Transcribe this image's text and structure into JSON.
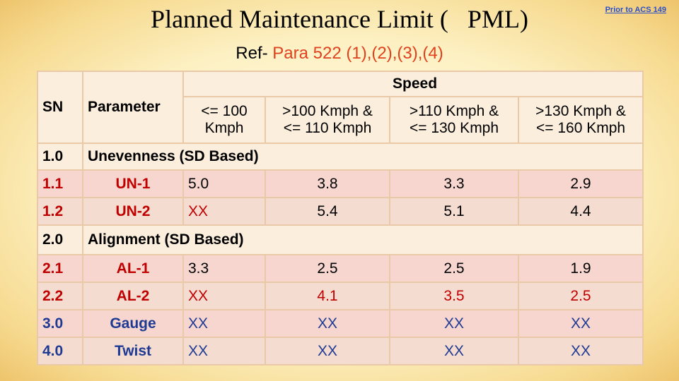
{
  "header": {
    "title_part1": "Planned Maintenance Limit (",
    "title_part2": "PML)",
    "corner_link": "Prior to ACS 149",
    "ref_prefix": "Ref-",
    "ref_value": "Para 522 (1),(2),(3),(4)"
  },
  "table": {
    "col_sn": "SN",
    "col_parameter": "Parameter",
    "col_speed": "Speed",
    "speed_ranges": [
      {
        "line1": "<= 100",
        "line2": "Kmph"
      },
      {
        "line1": ">100 Kmph &",
        "line2": "<= 110 Kmph"
      },
      {
        "line1": ">110 Kmph &",
        "line2": "<= 130 Kmph"
      },
      {
        "line1": ">130 Kmph &",
        "line2": "<= 160 Kmph"
      }
    ],
    "sections": {
      "unevenness": {
        "sn": "1.0",
        "label": "Unevenness (SD Based)"
      },
      "alignment": {
        "sn": "2.0",
        "label": "Alignment (SD Based)"
      }
    },
    "rows": {
      "un1": {
        "sn": "1.1",
        "param": "UN-1",
        "v": [
          "5.0",
          "3.8",
          "3.3",
          "2.9"
        ]
      },
      "un2": {
        "sn": "1.2",
        "param": "UN-2",
        "v": [
          "XX",
          "5.4",
          "5.1",
          "4.4"
        ]
      },
      "al1": {
        "sn": "2.1",
        "param": "AL-1",
        "v": [
          "3.3",
          "2.5",
          "2.5",
          "1.9"
        ]
      },
      "al2": {
        "sn": "2.2",
        "param": "AL-2",
        "v": [
          "XX",
          "4.1",
          "3.5",
          "2.5"
        ]
      },
      "gauge": {
        "sn": "3.0",
        "param": "Gauge",
        "v": [
          "XX",
          "XX",
          "XX",
          "XX"
        ]
      },
      "twist": {
        "sn": "4.0",
        "param": "Twist",
        "v": [
          "XX",
          "XX",
          "XX",
          "XX"
        ]
      }
    }
  }
}
